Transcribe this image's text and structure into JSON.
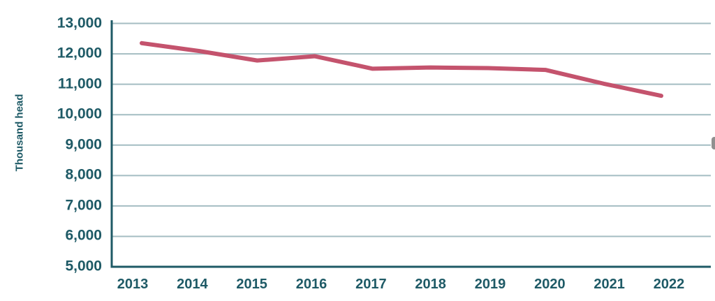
{
  "chart_data": {
    "type": "line",
    "title": "",
    "xlabel": "",
    "ylabel": "Thousand head",
    "x": [
      "2013",
      "2014",
      "2015",
      "2016",
      "2017",
      "2018",
      "2019",
      "2020",
      "2021",
      "2022"
    ],
    "series": [
      {
        "name": "Thousand head",
        "values": [
          12350,
          12090,
          11780,
          11920,
          11510,
          11550,
          11530,
          11470,
          11020,
          10620
        ]
      }
    ],
    "ylim": [
      5000,
      13000
    ],
    "ytick_interval": 1000,
    "ytick_labels": [
      "13,000",
      "12,000",
      "11,000",
      "10,000",
      "9,000",
      "8,000",
      "7,000",
      "6,000",
      "5,000"
    ],
    "grid": true,
    "legend": false,
    "colors": {
      "line": "#C4536D",
      "axis": "#1E5A66",
      "text": "#1E5A66",
      "gridline": "#A4BDC2",
      "background": "#FFFFFF"
    }
  }
}
